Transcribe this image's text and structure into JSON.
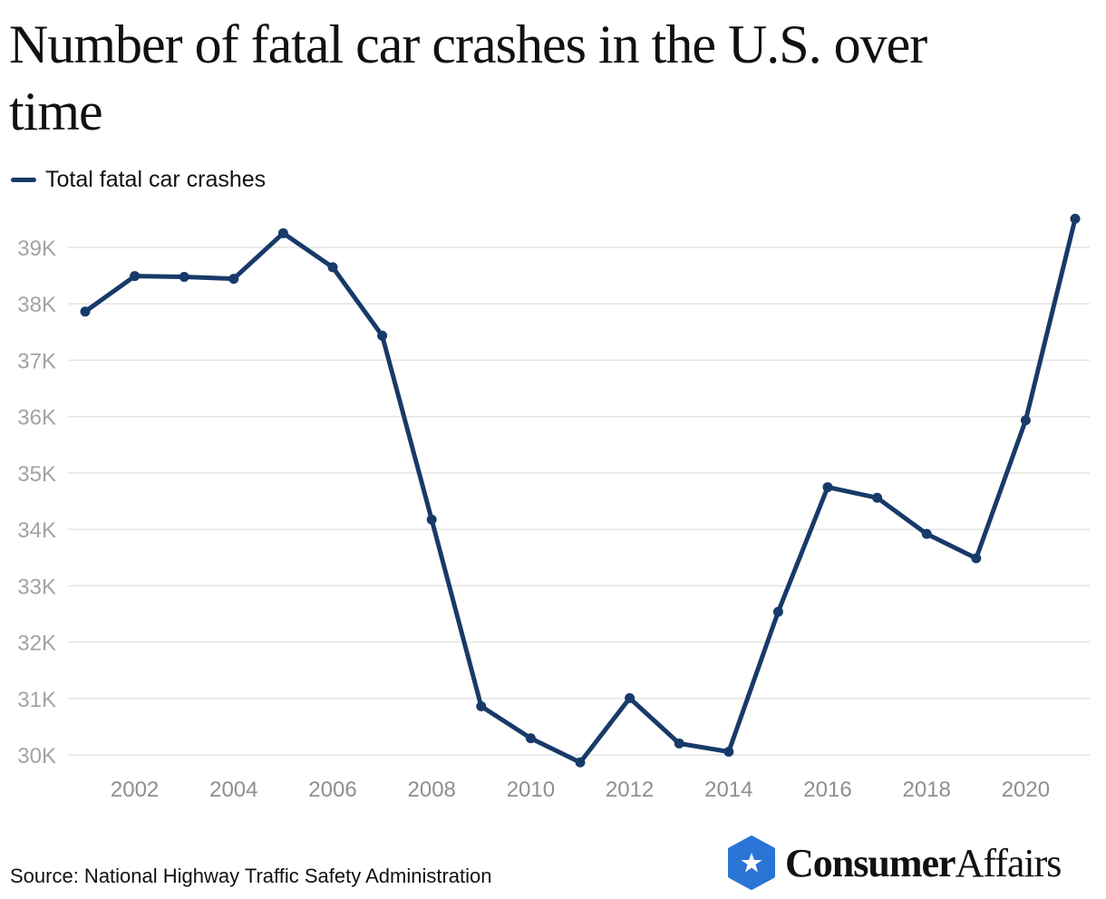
{
  "title": "Number of fatal car crashes in the U.S. over time",
  "source": "Source: National Highway Traffic Safety Administration",
  "logo": {
    "brand_bold": "Consumer",
    "brand_regular": "Affairs",
    "icon": "star-hexagon-icon",
    "color": "#2a74d6"
  },
  "chart_data": {
    "type": "line",
    "title": "Number of fatal car crashes in the U.S. over time",
    "xlabel": "",
    "ylabel": "",
    "x": [
      2001,
      2002,
      2003,
      2004,
      2005,
      2006,
      2007,
      2008,
      2009,
      2010,
      2011,
      2012,
      2013,
      2014,
      2015,
      2016,
      2017,
      2018,
      2019,
      2020,
      2021
    ],
    "series": [
      {
        "name": "Total fatal car crashes",
        "color": "#173a69",
        "values": [
          37862,
          38491,
          38477,
          38444,
          39252,
          38648,
          37435,
          34172,
          30862,
          30296,
          29867,
          31006,
          30203,
          30056,
          32538,
          34748,
          34560,
          33919,
          33487,
          35935,
          39508
        ]
      }
    ],
    "ylim": [
      29800,
      39600
    ],
    "yticks": [
      30000,
      31000,
      32000,
      33000,
      34000,
      35000,
      36000,
      37000,
      38000,
      39000
    ],
    "ytick_labels": [
      "30K",
      "31K",
      "32K",
      "33K",
      "34K",
      "35K",
      "36K",
      "37K",
      "38K",
      "39K"
    ],
    "xticks": [
      2002,
      2004,
      2006,
      2008,
      2010,
      2012,
      2014,
      2016,
      2018,
      2020
    ],
    "xtick_labels": [
      "2002",
      "2004",
      "2006",
      "2008",
      "2010",
      "2012",
      "2014",
      "2016",
      "2018",
      "2020"
    ],
    "grid": true,
    "legend_placement": "top-left"
  }
}
